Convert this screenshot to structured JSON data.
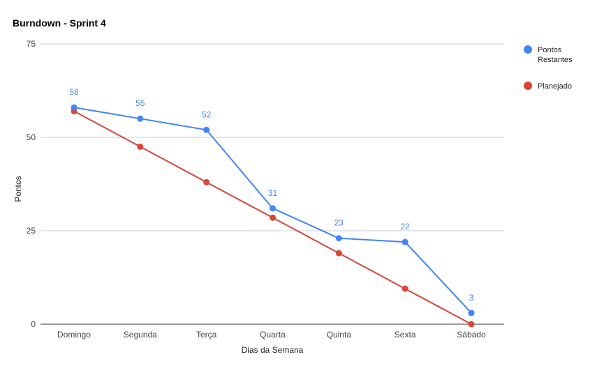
{
  "chart_data": {
    "type": "line",
    "title": "Burndown - Sprint 4",
    "xlabel": "Dias da Semana",
    "ylabel": "Pontos",
    "categories": [
      "Domingo",
      "Segunda",
      "Terça",
      "Quarta",
      "Quinta",
      "Sexta",
      "Sábado"
    ],
    "ylim": [
      0,
      75
    ],
    "yticks": [
      "0",
      "25",
      "50",
      "75"
    ],
    "grid": true,
    "legend_position": "right",
    "series": [
      {
        "name": "Pontos Restantes",
        "legend_lines": [
          "Pontos",
          "Restantes"
        ],
        "color": "#4285f4",
        "values": [
          58,
          55,
          52,
          31,
          23,
          22,
          3
        ],
        "labels": [
          "58",
          "55",
          "52",
          "31",
          "23",
          "22",
          "3"
        ]
      },
      {
        "name": "Planejado",
        "color": "#db4437",
        "values": [
          57,
          47.5,
          38,
          28.5,
          19,
          9.5,
          0
        ]
      }
    ]
  }
}
